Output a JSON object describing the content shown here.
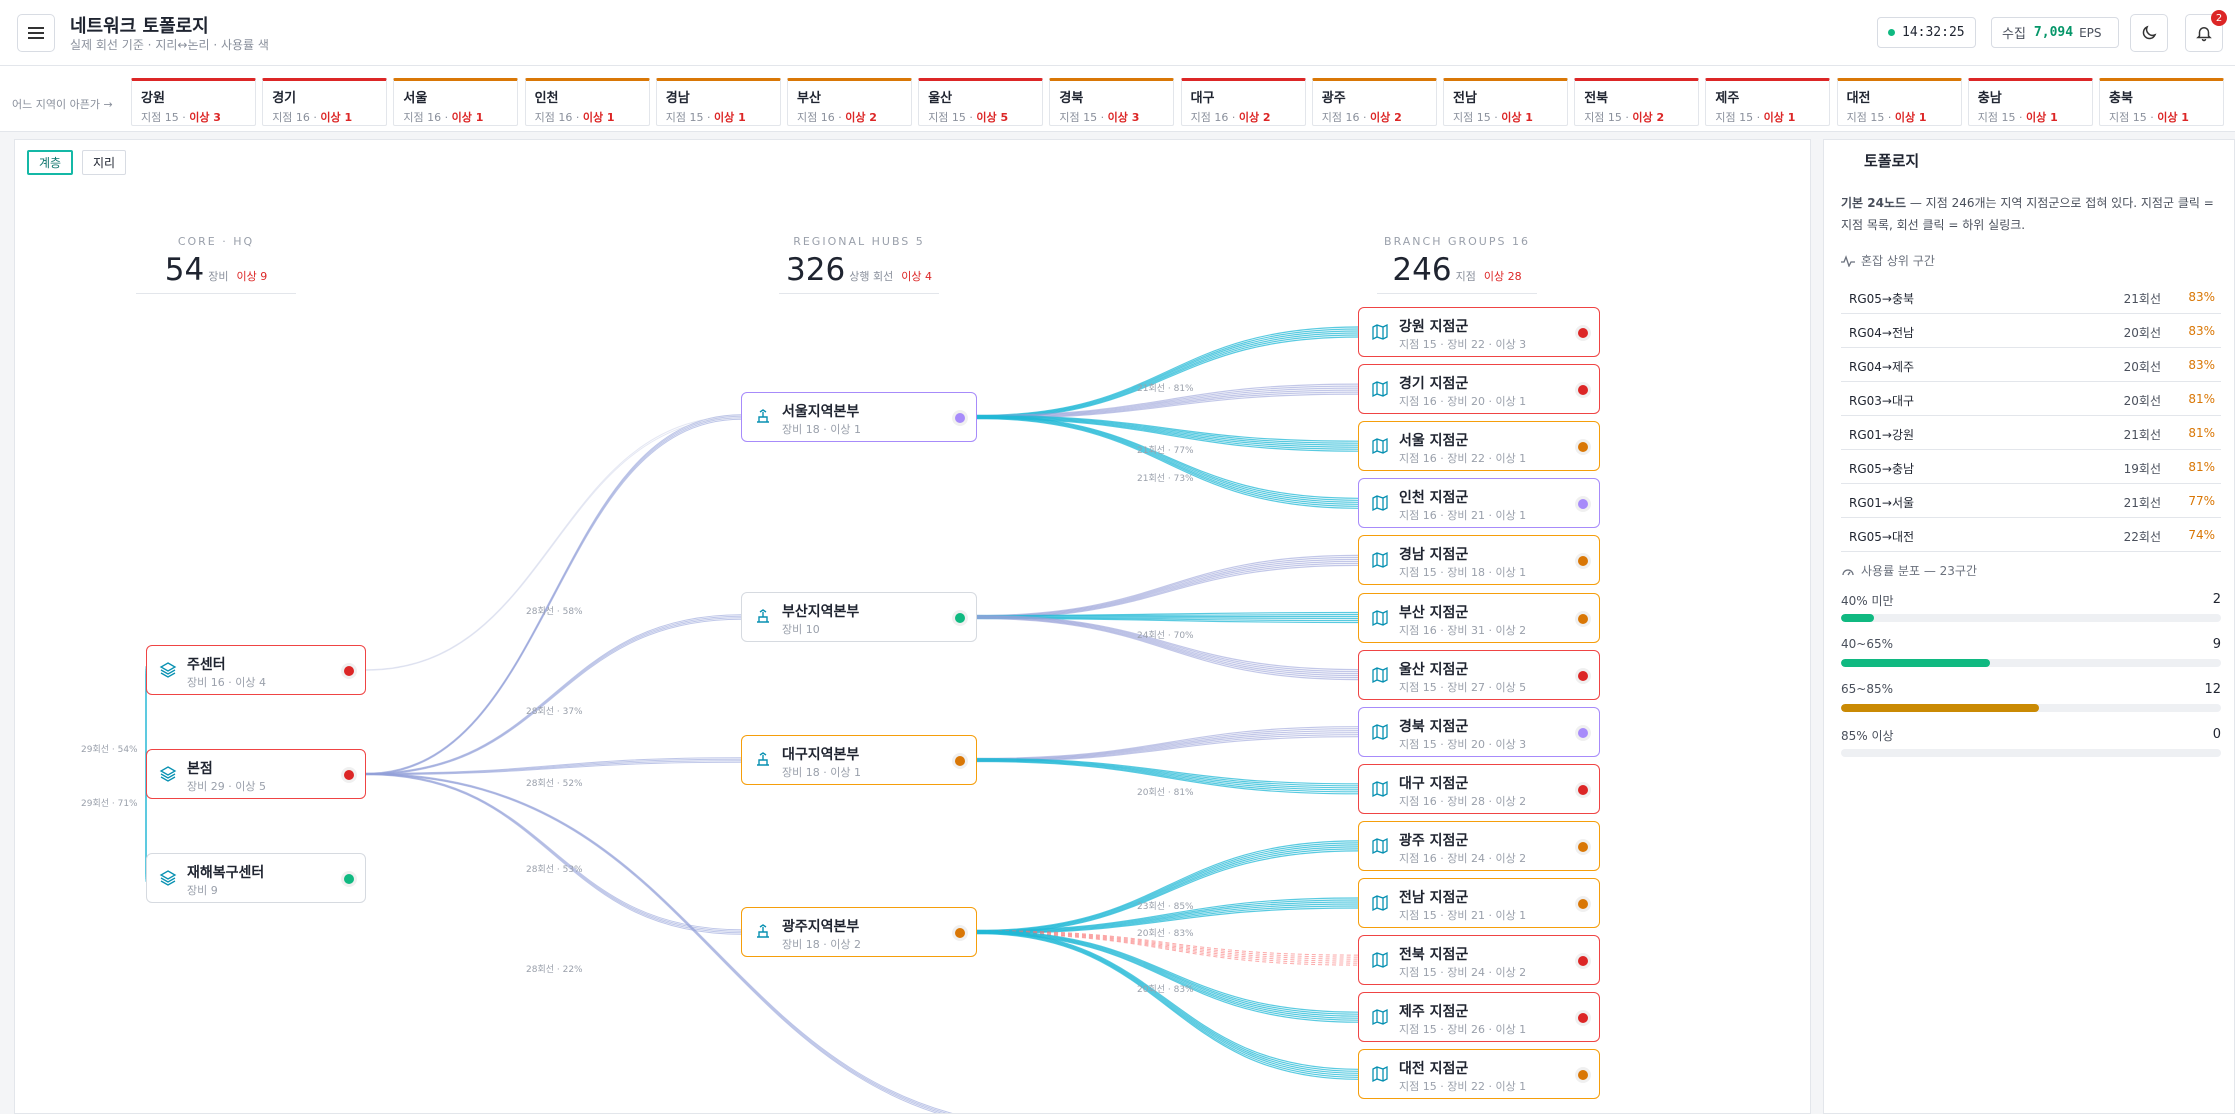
{
  "header": {
    "title": "네트워크 토폴로지",
    "subtitle": "실제 회선 기준 · 지리↔논리 · 사용률 색",
    "clock": "14:32:25",
    "ingest_label": "수집",
    "ingest_value": "7,094",
    "ingest_unit": "EPS",
    "notif_count": "2",
    "status_color": "#10b981"
  },
  "regions": {
    "prompt": "어느 지역이 아픈가 →",
    "items": [
      {
        "name": "강원",
        "branches": "지점 15",
        "anomalies": "이상 3",
        "sev": "red"
      },
      {
        "name": "경기",
        "branches": "지점 16",
        "anomalies": "이상 1",
        "sev": "red"
      },
      {
        "name": "서울",
        "branches": "지점 16",
        "anomalies": "이상 1",
        "sev": "orange"
      },
      {
        "name": "인천",
        "branches": "지점 16",
        "anomalies": "이상 1",
        "sev": "orange"
      },
      {
        "name": "경남",
        "branches": "지점 15",
        "anomalies": "이상 1",
        "sev": "orange"
      },
      {
        "name": "부산",
        "branches": "지점 16",
        "anomalies": "이상 2",
        "sev": "orange"
      },
      {
        "name": "울산",
        "branches": "지점 15",
        "anomalies": "이상 5",
        "sev": "red"
      },
      {
        "name": "경북",
        "branches": "지점 15",
        "anomalies": "이상 3",
        "sev": "orange"
      },
      {
        "name": "대구",
        "branches": "지점 16",
        "anomalies": "이상 2",
        "sev": "red"
      },
      {
        "name": "광주",
        "branches": "지점 16",
        "anomalies": "이상 2",
        "sev": "orange"
      },
      {
        "name": "전남",
        "branches": "지점 15",
        "anomalies": "이상 1",
        "sev": "orange"
      },
      {
        "name": "전북",
        "branches": "지점 15",
        "anomalies": "이상 2",
        "sev": "red"
      },
      {
        "name": "제주",
        "branches": "지점 15",
        "anomalies": "이상 1",
        "sev": "red"
      },
      {
        "name": "대전",
        "branches": "지점 15",
        "anomalies": "이상 1",
        "sev": "orange"
      },
      {
        "name": "충남",
        "branches": "지점 15",
        "anomalies": "이상 1",
        "sev": "red"
      },
      {
        "name": "충북",
        "branches": "지점 15",
        "anomalies": "이상 1",
        "sev": "orange"
      }
    ]
  },
  "view": {
    "hier_label": "계층",
    "geo_label": "지리",
    "active": "계층"
  },
  "columns": {
    "core": {
      "label": "CORE · HQ",
      "value": "54",
      "unit": "장비",
      "anomalies": "이상 9"
    },
    "hubs": {
      "label": "REGIONAL HUBS 5",
      "value": "326",
      "unit": "상행 회선",
      "anomalies": "이상 4"
    },
    "branches": {
      "label": "BRANCH GROUPS 16",
      "value": "246",
      "unit": "지점",
      "anomalies": "이상 28"
    }
  },
  "hq_nodes": [
    {
      "name": "주센터",
      "stats": "장비 16 · 이상 4",
      "status": "red"
    },
    {
      "name": "본점",
      "stats": "장비 29 · 이상 5",
      "status": "red"
    },
    {
      "name": "재해복구센터",
      "stats": "장비 9",
      "status": "green"
    }
  ],
  "hub_nodes": [
    {
      "name": "서울지역본부",
      "stats": "장비 18 · 이상 1",
      "status": "purple"
    },
    {
      "name": "부산지역본부",
      "stats": "장비 10",
      "status": "green"
    },
    {
      "name": "대구지역본부",
      "stats": "장비 18 · 이상 1",
      "status": "orange"
    },
    {
      "name": "광주지역본부",
      "stats": "장비 18 · 이상 2",
      "status": "orange"
    }
  ],
  "branch_nodes": [
    {
      "name": "강원 지점군",
      "stats": "지점 15 · 장비 22 · 이상 3",
      "status": "red"
    },
    {
      "name": "경기 지점군",
      "stats": "지점 16 · 장비 20 · 이상 1",
      "status": "red"
    },
    {
      "name": "서울 지점군",
      "stats": "지점 16 · 장비 22 · 이상 1",
      "status": "orange"
    },
    {
      "name": "인천 지점군",
      "stats": "지점 16 · 장비 21 · 이상 1",
      "status": "purple"
    },
    {
      "name": "경남 지점군",
      "stats": "지점 15 · 장비 18 · 이상 1",
      "status": "orange"
    },
    {
      "name": "부산 지점군",
      "stats": "지점 16 · 장비 31 · 이상 2",
      "status": "orange"
    },
    {
      "name": "울산 지점군",
      "stats": "지점 15 · 장비 27 · 이상 5",
      "status": "red"
    },
    {
      "name": "경북 지점군",
      "stats": "지점 15 · 장비 20 · 이상 3",
      "status": "purple"
    },
    {
      "name": "대구 지점군",
      "stats": "지점 16 · 장비 28 · 이상 2",
      "status": "red"
    },
    {
      "name": "광주 지점군",
      "stats": "지점 16 · 장비 24 · 이상 2",
      "status": "orange"
    },
    {
      "name": "전남 지점군",
      "stats": "지점 15 · 장비 21 · 이상 1",
      "status": "orange"
    },
    {
      "name": "전북 지점군",
      "stats": "지점 15 · 장비 24 · 이상 2",
      "status": "red"
    },
    {
      "name": "제주 지점군",
      "stats": "지점 15 · 장비 26 · 이상 1",
      "status": "red"
    },
    {
      "name": "대전 지점군",
      "stats": "지점 15 · 장비 22 · 이상 1",
      "status": "orange"
    }
  ],
  "edge_labels": {
    "hq_top": "29회선 · 54%",
    "hq_bottom": "29회선 · 71%",
    "to_seoul": "28회선 · 58%",
    "to_busan": "28회선 · 37%",
    "to_daegu": "28회선 · 52%",
    "to_gwangju": "28회선 · 53%",
    "to_bottom": "28회선 · 22%",
    "seoul_gangwon": "21회선 · 81%",
    "seoul_seoul": "21회선 · 77%",
    "seoul_incheon": "21회선 · 73%",
    "busan_busan": "24회선 · 70%",
    "daegu_daegu": "20회선 · 81%",
    "gwangju_gwangju": "23회선 · 85%",
    "gwangju_jeonnam": "20회선 · 83%",
    "gwangju_jeju": "20회선 · 83%"
  },
  "side": {
    "title": "토폴로지",
    "desc_bold": "기본 24노드",
    "desc_rest": " — 지점 246개는 지역 지점군으로 접혀 있다. 지점군 클릭 = 지점 목록, 회선 클릭 = 하위 실링크.",
    "congestion_title": "혼잡 상위 구간",
    "congestion": [
      {
        "name": "RG05→충북",
        "count": "21회선",
        "pct": "83%"
      },
      {
        "name": "RG04→전남",
        "count": "20회선",
        "pct": "83%"
      },
      {
        "name": "RG04→제주",
        "count": "20회선",
        "pct": "83%"
      },
      {
        "name": "RG03→대구",
        "count": "20회선",
        "pct": "81%"
      },
      {
        "name": "RG01→강원",
        "count": "21회선",
        "pct": "81%"
      },
      {
        "name": "RG05→충남",
        "count": "19회선",
        "pct": "81%"
      },
      {
        "name": "RG01→서울",
        "count": "21회선",
        "pct": "77%"
      },
      {
        "name": "RG05→대전",
        "count": "22회선",
        "pct": "74%"
      }
    ],
    "dist_title": "사용률 분포 — 23구간",
    "distribution": [
      {
        "label": "40% 미만",
        "count": "2",
        "fraction": 0.087,
        "color": "#10b981"
      },
      {
        "label": "40~65%",
        "count": "9",
        "fraction": 0.391,
        "color": "#10b981"
      },
      {
        "label": "65~85%",
        "count": "12",
        "fraction": 0.522,
        "color": "#ca8a04"
      },
      {
        "label": "85% 이상",
        "count": "0",
        "fraction": 0,
        "color": "#dc2626"
      }
    ]
  }
}
